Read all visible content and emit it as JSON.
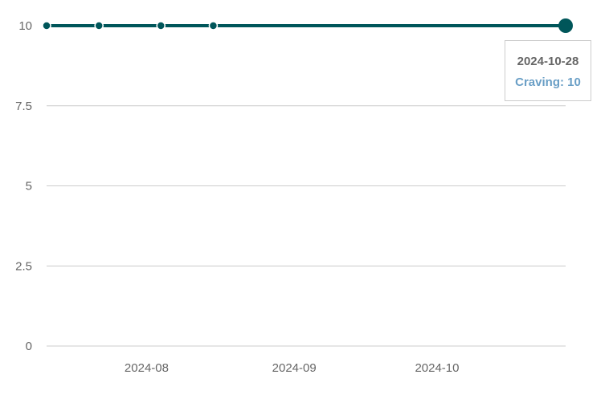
{
  "chart_data": {
    "type": "line",
    "x": [
      "2024-07-11",
      "2024-07-22",
      "2024-08-04",
      "2024-08-15",
      "2024-10-28"
    ],
    "series": [
      {
        "values": [
          10,
          10,
          10,
          10,
          10
        ]
      }
    ],
    "x_ticks": [
      "2024-08",
      "2024-09",
      "2024-10"
    ],
    "y_ticks": [
      "0",
      "2.5",
      "5",
      "7.5",
      "10"
    ],
    "ylim": [
      0,
      10
    ],
    "xlim": [
      "2024-07-11",
      "2024-10-28"
    ],
    "grid": "horizontal",
    "line_color": "#00565a",
    "tooltip": {
      "date": "2024-10-28",
      "series_label": "Craving",
      "value": "10",
      "text": "Craving: 10"
    }
  }
}
